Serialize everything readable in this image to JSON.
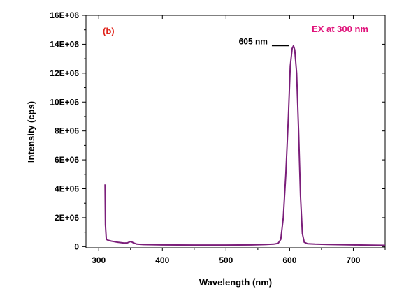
{
  "chart_data": {
    "type": "line",
    "title": "",
    "xlabel": "Wavelength (nm)",
    "ylabel": "Intensity (cps)",
    "xlim": [
      280,
      750
    ],
    "ylim": [
      -80000,
      16000000
    ],
    "x_ticks": [
      300,
      400,
      500,
      600,
      700
    ],
    "x_tick_labels": [
      "300",
      "400",
      "500",
      "600",
      "700"
    ],
    "y_ticks": [
      0,
      2000000,
      4000000,
      6000000,
      8000000,
      10000000,
      12000000,
      14000000,
      16000000
    ],
    "y_tick_labels": [
      "0",
      "2E+06",
      "4E+06",
      "6E+06",
      "8E+06",
      "10E+06",
      "12E+06",
      "14E+06",
      "16E+06"
    ],
    "grid": false,
    "legend": "none",
    "series_color": "#7b1e7a",
    "panel_label": "(b)",
    "panel_label_color": "#e0241b",
    "excitation_label": "EX at 300 nm",
    "excitation_label_color": "#e0127a",
    "peak_annotation": {
      "text": "605 nm",
      "x": 605,
      "y": 13900000
    },
    "series": [
      {
        "x": [
          310,
          310.5,
          312,
          315,
          320,
          330,
          340,
          345,
          350,
          352,
          355,
          360,
          370,
          400,
          450,
          500,
          540,
          560,
          575,
          582,
          586,
          590,
          594,
          598,
          601,
          604,
          606,
          608,
          611,
          614,
          617,
          620,
          623,
          628,
          640,
          660,
          700,
          730,
          750
        ],
        "y": [
          4300000,
          1500000,
          500000,
          430000,
          380000,
          300000,
          250000,
          260000,
          350000,
          320000,
          250000,
          170000,
          140000,
          120000,
          110000,
          110000,
          120000,
          140000,
          170000,
          230000,
          500000,
          2000000,
          5000000,
          9000000,
          12500000,
          13700000,
          13900000,
          13600000,
          12000000,
          8000000,
          3500000,
          900000,
          300000,
          200000,
          170000,
          150000,
          120000,
          100000,
          90000
        ]
      }
    ]
  }
}
